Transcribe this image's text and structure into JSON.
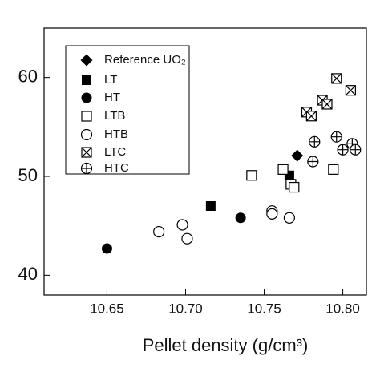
{
  "chart_data": {
    "type": "scatter",
    "xlabel": "Pellet density (g/cm³)",
    "xlim": [
      10.61,
      10.815
    ],
    "ylim": [
      38,
      65
    ],
    "xticks": [
      10.65,
      {
        "value": 10.7,
        "label": "10.70"
      },
      10.75,
      {
        "value": 10.8,
        "label": "10.80"
      }
    ],
    "yticks": [
      40,
      50,
      60
    ],
    "series": [
      {
        "name": "Reference UO₂",
        "marker": "diamond",
        "color": "#000000",
        "x": [
          10.771
        ],
        "values": [
          52.1
        ]
      },
      {
        "name": "LT",
        "marker": "square",
        "color": "#000000",
        "x": [
          10.716,
          10.766
        ],
        "values": [
          47.0,
          50.1
        ]
      },
      {
        "name": "HT",
        "marker": "circle",
        "color": "#000000",
        "x": [
          10.65,
          10.735
        ],
        "values": [
          42.7,
          45.8
        ]
      },
      {
        "name": "LTB",
        "marker": "open-square",
        "color": "#000000",
        "x": [
          10.742,
          10.762,
          10.767,
          10.769,
          10.794
        ],
        "values": [
          50.1,
          50.7,
          49.2,
          48.9,
          50.7
        ]
      },
      {
        "name": "HTB",
        "marker": "open-circle",
        "color": "#000000",
        "x": [
          10.683,
          10.698,
          10.701,
          10.755,
          10.755,
          10.766
        ],
        "values": [
          44.4,
          45.1,
          43.7,
          46.5,
          46.2,
          45.8
        ]
      },
      {
        "name": "LTC",
        "marker": "crossed-square",
        "color": "#000000",
        "x": [
          10.777,
          10.78,
          10.787,
          10.79,
          10.796,
          10.805
        ],
        "values": [
          56.5,
          56.1,
          57.7,
          57.3,
          59.9,
          58.7
        ]
      },
      {
        "name": "HTC",
        "marker": "crossed-circle",
        "color": "#000000",
        "x": [
          10.782,
          10.781,
          10.796,
          10.8,
          10.806,
          10.808
        ],
        "values": [
          53.5,
          51.5,
          54.0,
          52.7,
          53.3,
          52.7
        ]
      }
    ]
  }
}
